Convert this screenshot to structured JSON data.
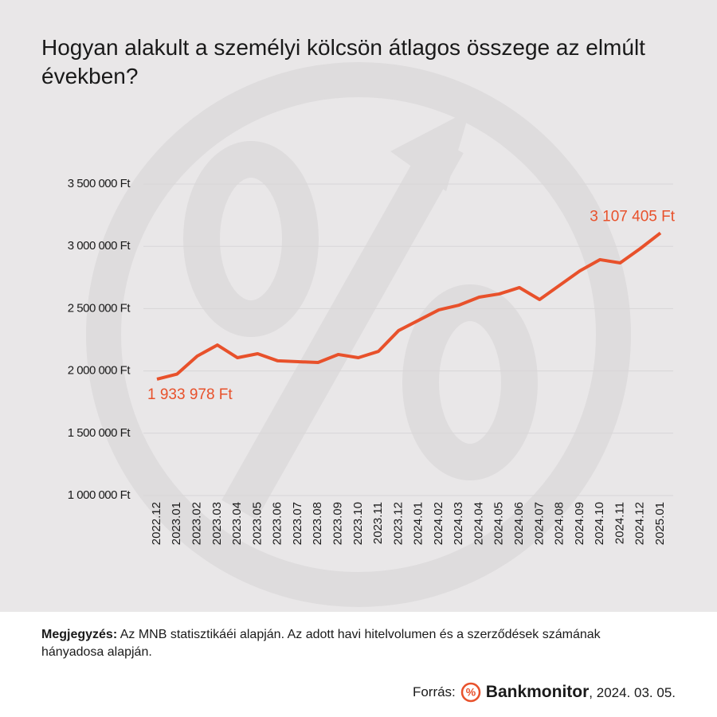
{
  "chart_data": {
    "type": "line",
    "title": "Hogyan alakult a személyi kölcsön átlagos összege az elmúlt években?",
    "categories": [
      "2022.12",
      "2023.01",
      "2023.02",
      "2023.03",
      "2023.04",
      "2023.05",
      "2023.06",
      "2023.07",
      "2023.08",
      "2023.09",
      "2023.10",
      "2023.11",
      "2023.12",
      "2024.01",
      "2024.02",
      "2024.03",
      "2024.04",
      "2024.05",
      "2024.06",
      "2024.07",
      "2024.08",
      "2024.09",
      "2024.10",
      "2024.11",
      "2024.12",
      "2025.01"
    ],
    "series": [
      {
        "color": "#e8512b",
        "values": [
          1933978,
          1975000,
          2119000,
          2208000,
          2106000,
          2138000,
          2081000,
          2074000,
          2068000,
          2132000,
          2106000,
          2157000,
          2324000,
          2407000,
          2490000,
          2528000,
          2592000,
          2618000,
          2669000,
          2573000,
          2688000,
          2803000,
          2893000,
          2867000,
          2982000,
          3107405
        ],
        "value_labels": [
          "1 933 978 Ft",
          null,
          null,
          null,
          null,
          null,
          null,
          null,
          null,
          null,
          null,
          null,
          null,
          null,
          null,
          null,
          null,
          null,
          null,
          null,
          null,
          null,
          null,
          null,
          null,
          "3 107 405 Ft"
        ]
      }
    ],
    "ylim": [
      1000000,
      3500000
    ],
    "yticks": [
      {
        "value": 1000000,
        "label": "1 000 000 Ft"
      },
      {
        "value": 1500000,
        "label": "1 500 000 Ft"
      },
      {
        "value": 2000000,
        "label": "2 000 000 Ft"
      },
      {
        "value": 2500000,
        "label": "2 500 000 Ft"
      },
      {
        "value": 3000000,
        "label": "3 000 000 Ft"
      },
      {
        "value": 3500000,
        "label": "3 500 000 Ft"
      }
    ],
    "grid": true,
    "note_label": "Megjegyzés:",
    "note": "Az MNB statisztikáéi alapján. Az adott havi hitelvolumen és a szerződések számának hányadosa alapján.",
    "source_label": "Forrás:",
    "source_brand": "Bankmonitor",
    "source_date": ", 2024. 03. 05."
  }
}
